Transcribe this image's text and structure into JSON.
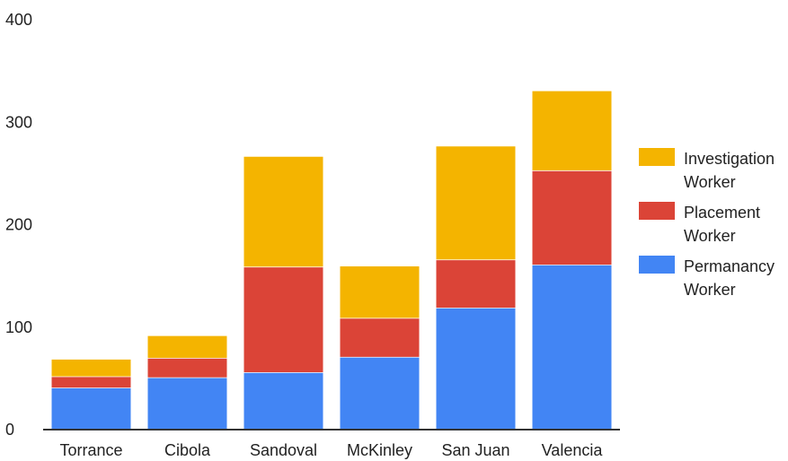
{
  "chart_data": {
    "type": "bar",
    "stacked": true,
    "title": "",
    "xlabel": "",
    "ylabel": "",
    "ylim": [
      0,
      400
    ],
    "yticks": [
      0,
      100,
      200,
      300,
      400
    ],
    "grid": false,
    "legend_position": "right",
    "categories": [
      "Torrance",
      "Cibola",
      "Sandoval",
      "McKinley",
      "San Juan",
      "Valencia"
    ],
    "series": [
      {
        "name": "Permanancy Worker",
        "legend_lines": [
          "Permanancy",
          "Worker"
        ],
        "color": "#4285f4",
        "values": [
          41,
          51,
          56,
          71,
          119,
          161
        ]
      },
      {
        "name": "Placement Worker",
        "legend_lines": [
          "Placement",
          "Worker"
        ],
        "color": "#db4437",
        "values": [
          11,
          19,
          103,
          38,
          47,
          92
        ]
      },
      {
        "name": "Investigation Worker",
        "legend_lines": [
          "Investigation",
          "Worker"
        ],
        "color": "#f4b400",
        "values": [
          17,
          22,
          108,
          51,
          111,
          78
        ]
      }
    ],
    "legend_order": [
      2,
      1,
      0
    ]
  }
}
